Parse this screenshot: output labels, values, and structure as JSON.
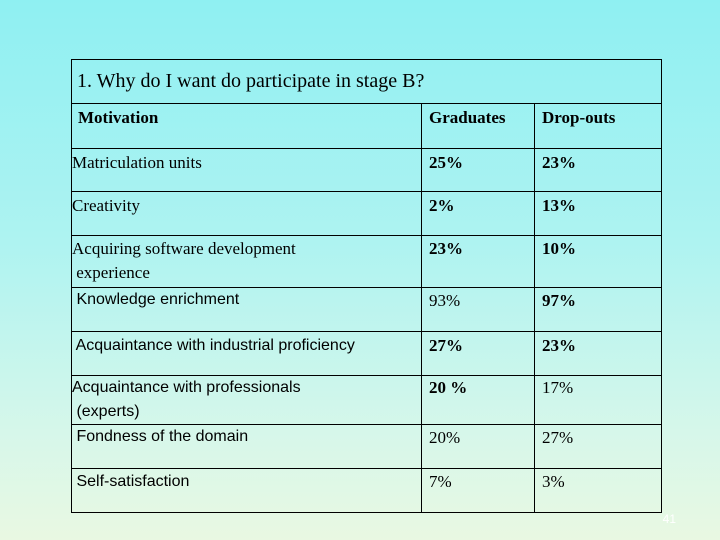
{
  "title": "1. Why do I want do participate in stage B?",
  "header": {
    "motivation": "Motivation",
    "graduates": "Graduates",
    "dropouts": "Drop-outs"
  },
  "rows": [
    {
      "motivation": [
        "Matriculation units"
      ],
      "graduates": "25%",
      "dropouts": "23%"
    },
    {
      "motivation": [
        "Creativity"
      ],
      "graduates": "2%",
      "dropouts": "13%"
    },
    {
      "motivation": [
        "Acquiring software development",
        " experience"
      ],
      "graduates": "23%",
      "dropouts": "10%"
    },
    {
      "motivation": [
        " Knowledge enrichment"
      ],
      "graduates": "93%",
      "dropouts": "97%"
    },
    {
      "motivation": [
        " Acquaintance with industrial proficiency"
      ],
      "graduates": "27%",
      "dropouts": "23%"
    },
    {
      "motivation": [
        "Acquaintance with professionals",
        " (experts)"
      ],
      "graduates": "20 %",
      "dropouts": "17%"
    },
    {
      "motivation": [
        " Fondness of the domain"
      ],
      "graduates": "20%",
      "dropouts": "27%"
    },
    {
      "motivation": [
        " Self-satisfaction"
      ],
      "graduates": "7%",
      "dropouts": "3%"
    }
  ],
  "page_number": "41"
}
